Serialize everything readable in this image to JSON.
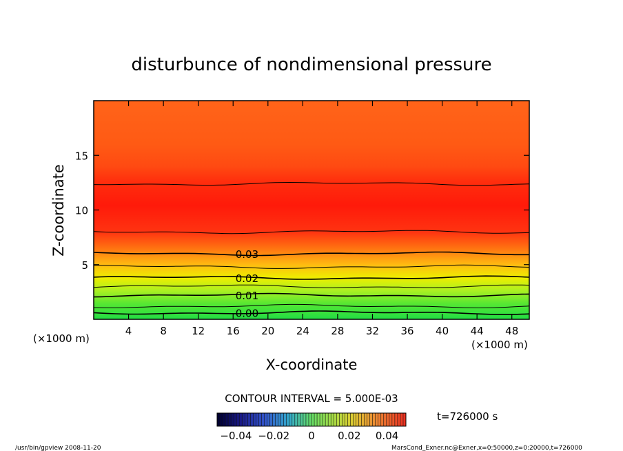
{
  "chart_data": {
    "type": "heatmap",
    "title": "disturbunce of nondimensional pressure",
    "xlabel": "X-coordinate",
    "ylabel": "Z-coordinate",
    "x_unit": "(×1000 m)",
    "y_unit": "(×1000 m)",
    "xlim": [
      0,
      50
    ],
    "ylim": [
      0,
      20
    ],
    "x_ticks": [
      4,
      8,
      12,
      16,
      20,
      24,
      28,
      32,
      36,
      40,
      44,
      48
    ],
    "y_ticks": [
      5,
      10,
      15
    ],
    "contour_interval_text": "CONTOUR INTERVAL = 5.000E-03",
    "contour_lines": [
      {
        "level": 0.0,
        "label": "0.00",
        "z": 0.6
      },
      {
        "level": 0.005,
        "label": "",
        "z": 1.2
      },
      {
        "level": 0.01,
        "label": "0.01",
        "z": 2.2
      },
      {
        "level": 0.015,
        "label": "",
        "z": 3.0
      },
      {
        "level": 0.02,
        "label": "0.02",
        "z": 3.8
      },
      {
        "level": 0.025,
        "label": "",
        "z": 4.8
      },
      {
        "level": 0.03,
        "label": "0.03",
        "z": 6.0
      },
      {
        "level": 0.035,
        "label": "",
        "z": 8.0
      },
      {
        "level": 0.035,
        "label": "",
        "z": 12.4
      }
    ],
    "colorbar": {
      "range": [
        -0.05,
        0.05
      ],
      "tick_labels": [
        "−0.04",
        "−0.02",
        "0",
        "0.02",
        "0.04"
      ],
      "tick_values": [
        -0.04,
        -0.02,
        0,
        0.02,
        0.04
      ]
    },
    "time_label": "t=726000 s",
    "footer_left": "/usr/bin/gpview   2008-11-20",
    "footer_right": "MarsCond_Exner.nc@Exner,x=0:50000,z=0:20000,t=726000"
  }
}
